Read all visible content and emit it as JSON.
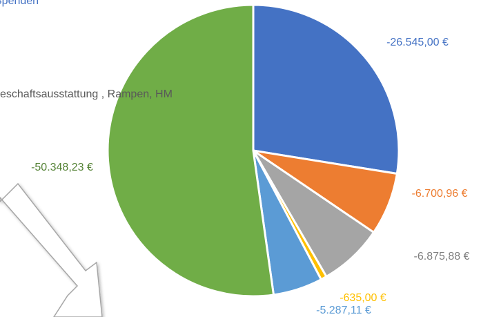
{
  "chart_data": {
    "type": "pie",
    "values": [
      -26545.0,
      -6700.96,
      -6875.88,
      -635.0,
      -5287.11,
      -50348.23
    ],
    "value_labels": [
      "-26.545,00 €",
      "-6.700,96 €",
      "-6.875,88 €",
      "-635,00 €",
      "-5.287,11 €",
      "-50.348,23 €"
    ],
    "colors": [
      "#4472c4",
      "#ed7d31",
      "#a5a5a5",
      "#ffc000",
      "#5b9bd5",
      "#70ad47"
    ],
    "label_colors": [
      "#4472c4",
      "#ed7d31",
      "#7f7f7f",
      "#ffc000",
      "#5b9bd5",
      "#548235"
    ],
    "annotations": [
      "Spenden",
      "eschaftsausstattung , Rampen, HM"
    ]
  }
}
